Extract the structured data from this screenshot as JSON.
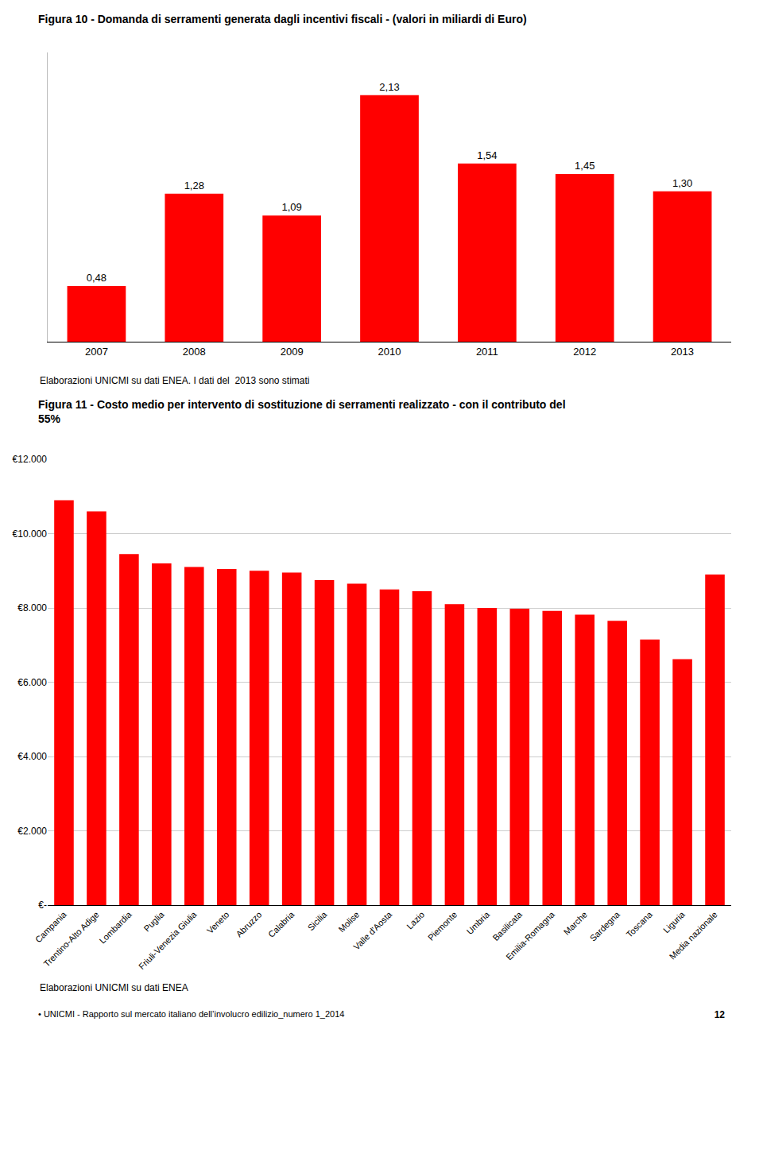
{
  "chart_data": [
    {
      "type": "bar",
      "title": "Figura 10 - Domanda di serramenti generata dagli incentivi fiscali - (valori in miliardi di Euro)",
      "categories": [
        "2007",
        "2008",
        "2009",
        "2010",
        "2011",
        "2012",
        "2013"
      ],
      "values": [
        0.48,
        1.28,
        1.09,
        2.13,
        1.54,
        1.45,
        1.3
      ],
      "value_labels": [
        "0,48",
        "1,28",
        "1,09",
        "2,13",
        "1,54",
        "1,45",
        "1,30"
      ],
      "data_labels": true,
      "color": "#FF0000",
      "ylim": [
        0,
        2.5
      ],
      "tick_labels": "x",
      "grid": false,
      "annotations": [
        "Elaborazioni UNICMI su dati ENEA. I dati del  2013 sono stimati"
      ]
    },
    {
      "type": "bar",
      "title": "Figura 11 - Costo medio per intervento di sostituzione di serramenti realizzato - con il contributo del\n55%",
      "categories": [
        "Campania",
        "Trentino-Alto Adige",
        "Lombardia",
        "Puglia",
        "Friuli-Venezia Giulia",
        "Veneto",
        "Abruzzo",
        "Calabria",
        "Sicilia",
        "Molise",
        "Valle d'Aosta",
        "Lazio",
        "Piemonte",
        "Umbria",
        "Basilicata",
        "Emilia-Romagna",
        "Marche",
        "Sardegna",
        "Toscana",
        "Liguria",
        "Media nazionale"
      ],
      "values": [
        10900,
        10600,
        9450,
        9200,
        9100,
        9050,
        9000,
        8950,
        8750,
        8650,
        8500,
        8450,
        8100,
        8000,
        7980,
        7920,
        7820,
        7650,
        7150,
        6620,
        8900
      ],
      "color": "#FF0000",
      "ylim": [
        0,
        12000
      ],
      "yticks": [
        {
          "value": 0,
          "label": "€-"
        },
        {
          "value": 2000,
          "label": "€2.000"
        },
        {
          "value": 4000,
          "label": "€4.000"
        },
        {
          "value": 6000,
          "label": "€6.000"
        },
        {
          "value": 8000,
          "label": "€8.000"
        },
        {
          "value": 10000,
          "label": "€10.000"
        },
        {
          "value": 12000,
          "label": "€12.000"
        }
      ],
      "grid": true,
      "annotations": [
        "Elaborazioni UNICMI su dati ENEA"
      ]
    }
  ],
  "annotations": [
    "• UNICMI - Rapporto sul mercato italiano dell’involucro edilizio_numero 1_2014",
    "12"
  ]
}
